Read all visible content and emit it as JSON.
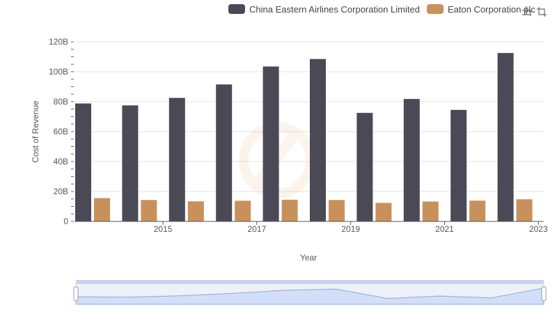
{
  "legend": {
    "items": [
      {
        "label": "China Eastern Airlines Corporation Limited",
        "color": "#4a4955"
      },
      {
        "label": "Eaton Corporation plc",
        "color": "#c8915c"
      }
    ]
  },
  "toolbar": {
    "icons": [
      "zoom-icon",
      "restore-icon"
    ]
  },
  "chart_data": {
    "type": "bar",
    "xlabel": "Year",
    "ylabel": "Cost of Revenue",
    "ylim": [
      0,
      120
    ],
    "y_unit": "B",
    "y_ticks": [
      "0",
      "20B",
      "40B",
      "60B",
      "80B",
      "100B",
      "120B"
    ],
    "categories": [
      "2014",
      "2015",
      "2016",
      "2017",
      "2018",
      "2019",
      "2020",
      "2021",
      "2022",
      "2023"
    ],
    "x_tick_labels": [
      "2015",
      "2017",
      "2019",
      "2021",
      "2023"
    ],
    "grid": true,
    "legend_position": "top",
    "series": [
      {
        "name": "China Eastern Airlines Corporation Limited",
        "color": "#4a4955",
        "values": [
          78.8,
          77.5,
          82.5,
          91.5,
          103.5,
          108.5,
          72.5,
          81.8,
          74.5,
          112.5
        ]
      },
      {
        "name": "Eaton Corporation plc",
        "color": "#c8915c",
        "values": [
          15.6,
          14.3,
          13.4,
          13.8,
          14.5,
          14.3,
          12.4,
          13.3,
          13.9,
          14.8
        ]
      }
    ]
  }
}
